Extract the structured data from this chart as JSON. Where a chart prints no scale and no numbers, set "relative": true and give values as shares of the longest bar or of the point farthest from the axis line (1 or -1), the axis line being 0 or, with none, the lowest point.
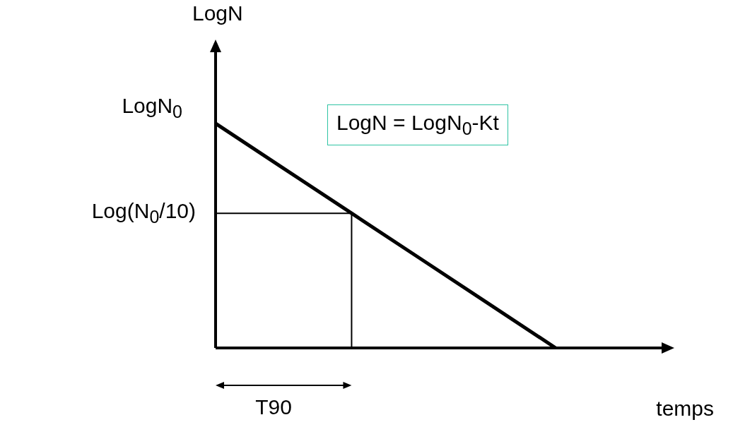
{
  "chart_data": {
    "type": "line",
    "relative": true,
    "ylabel": "LogN",
    "xlabel": "temps",
    "categories": [
      null,
      null,
      null,
      null,
      null,
      null,
      null
    ],
    "series": [
      {
        "color": "#000000",
        "values": [
          1,
          0.8,
          0.6,
          0.4,
          0.2,
          0,
          null
        ]
      }
    ],
    "marker": "none",
    "grid": false,
    "ref_lines": [
      {
        "axis": "y",
        "value": 0.6,
        "label": "Log(N$_{0}$/10)"
      }
    ],
    "annotations": [
      "LogN$_{0}$",
      "LogN = LogN$_{0}$-Kt",
      "T90"
    ]
  }
}
